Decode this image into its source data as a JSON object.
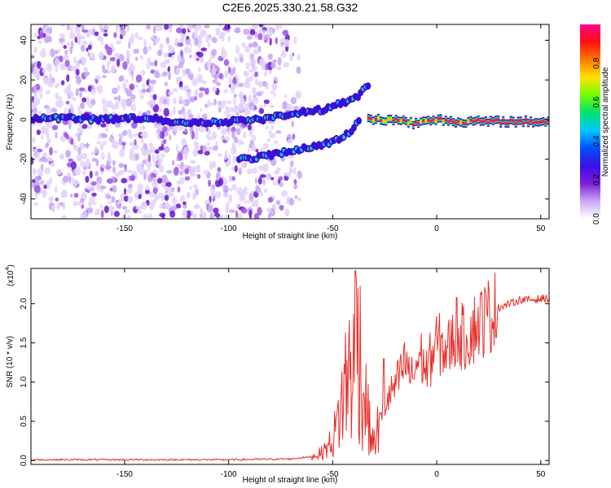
{
  "title": "C2E6.2025.330.21.58.G32",
  "chart_data": [
    {
      "type": "heatmap",
      "xlabel": "Height of straight line (km)",
      "ylabel": "Frequency (Hz)",
      "xlim": [
        -195,
        54
      ],
      "ylim": [
        -50,
        48
      ],
      "xticks": [
        -150,
        -100,
        -50,
        0,
        50
      ],
      "yticks": [
        -40,
        -20,
        0,
        20,
        40
      ],
      "colorbar": {
        "label": "Normalized spectral amplitude",
        "range": [
          0.0,
          1.0
        ],
        "ticks": [
          "0.0",
          "0.2",
          "0.4",
          "0.6",
          "0.8"
        ],
        "colors": [
          "#ffffff",
          "#c9a8f5",
          "#7a1fd6",
          "#3b10e8",
          "#0050ff",
          "#00c8ff",
          "#00e070",
          "#70ff00",
          "#ffe000",
          "#ff7a00",
          "#ff1010",
          "#ff0090"
        ]
      },
      "ridges": [
        {
          "x": [
            -195,
            -180,
            -160,
            -140,
            -120,
            -100,
            -85,
            -70,
            -55,
            -40,
            -32
          ],
          "y": [
            0,
            1,
            0,
            1,
            -2,
            -1,
            0,
            3,
            5,
            10,
            18
          ]
        },
        {
          "x": [
            -95,
            -80,
            -65,
            -50,
            -42,
            -37
          ],
          "y": [
            -20,
            -18,
            -15,
            -11,
            -7,
            0
          ]
        },
        {
          "x": [
            -33,
            -20,
            -10,
            0,
            10,
            54
          ],
          "y": [
            0,
            0,
            -2,
            0,
            -1,
            -1
          ]
        }
      ]
    },
    {
      "type": "line",
      "xlabel": "Height of straight line (km)",
      "ylabel": "SNR (10 * v/v)",
      "y_multiplier": "(x10",
      "y_multiplier_exp": "4",
      "xlim": [
        -195,
        54
      ],
      "ylim": [
        -0.05,
        2.45
      ],
      "xticks": [
        -150,
        -100,
        -50,
        0,
        50
      ],
      "yticks": [
        0.0,
        0.5,
        1.0,
        1.5,
        2.0
      ],
      "color": "#e8302c",
      "envelope": {
        "x": [
          -195,
          -100,
          -70,
          -60,
          -55,
          -50,
          -47,
          -44,
          -42,
          -40,
          -38,
          -36,
          -34,
          -32,
          -30,
          -28,
          -25,
          -22,
          -18,
          -15,
          -12,
          -8,
          -5,
          0,
          5,
          10,
          13,
          20,
          25,
          30,
          35,
          40,
          45,
          50,
          54
        ],
        "y": [
          0.01,
          0.01,
          0.02,
          0.05,
          0.1,
          0.25,
          0.55,
          0.95,
          1.2,
          1.1,
          2.0,
          0.9,
          0.75,
          0.35,
          0.2,
          0.45,
          0.7,
          0.85,
          1.05,
          1.25,
          1.05,
          1.35,
          1.15,
          1.5,
          1.4,
          1.65,
          1.55,
          1.75,
          1.85,
          1.95,
          2.0,
          2.05,
          2.05,
          2.06,
          2.07
        ]
      },
      "spikes": [
        {
          "x": -39,
          "y": 2.42
        },
        {
          "x": -25.5,
          "y": 1.3
        },
        {
          "x": 9.5,
          "y": 2.08
        }
      ]
    }
  ]
}
